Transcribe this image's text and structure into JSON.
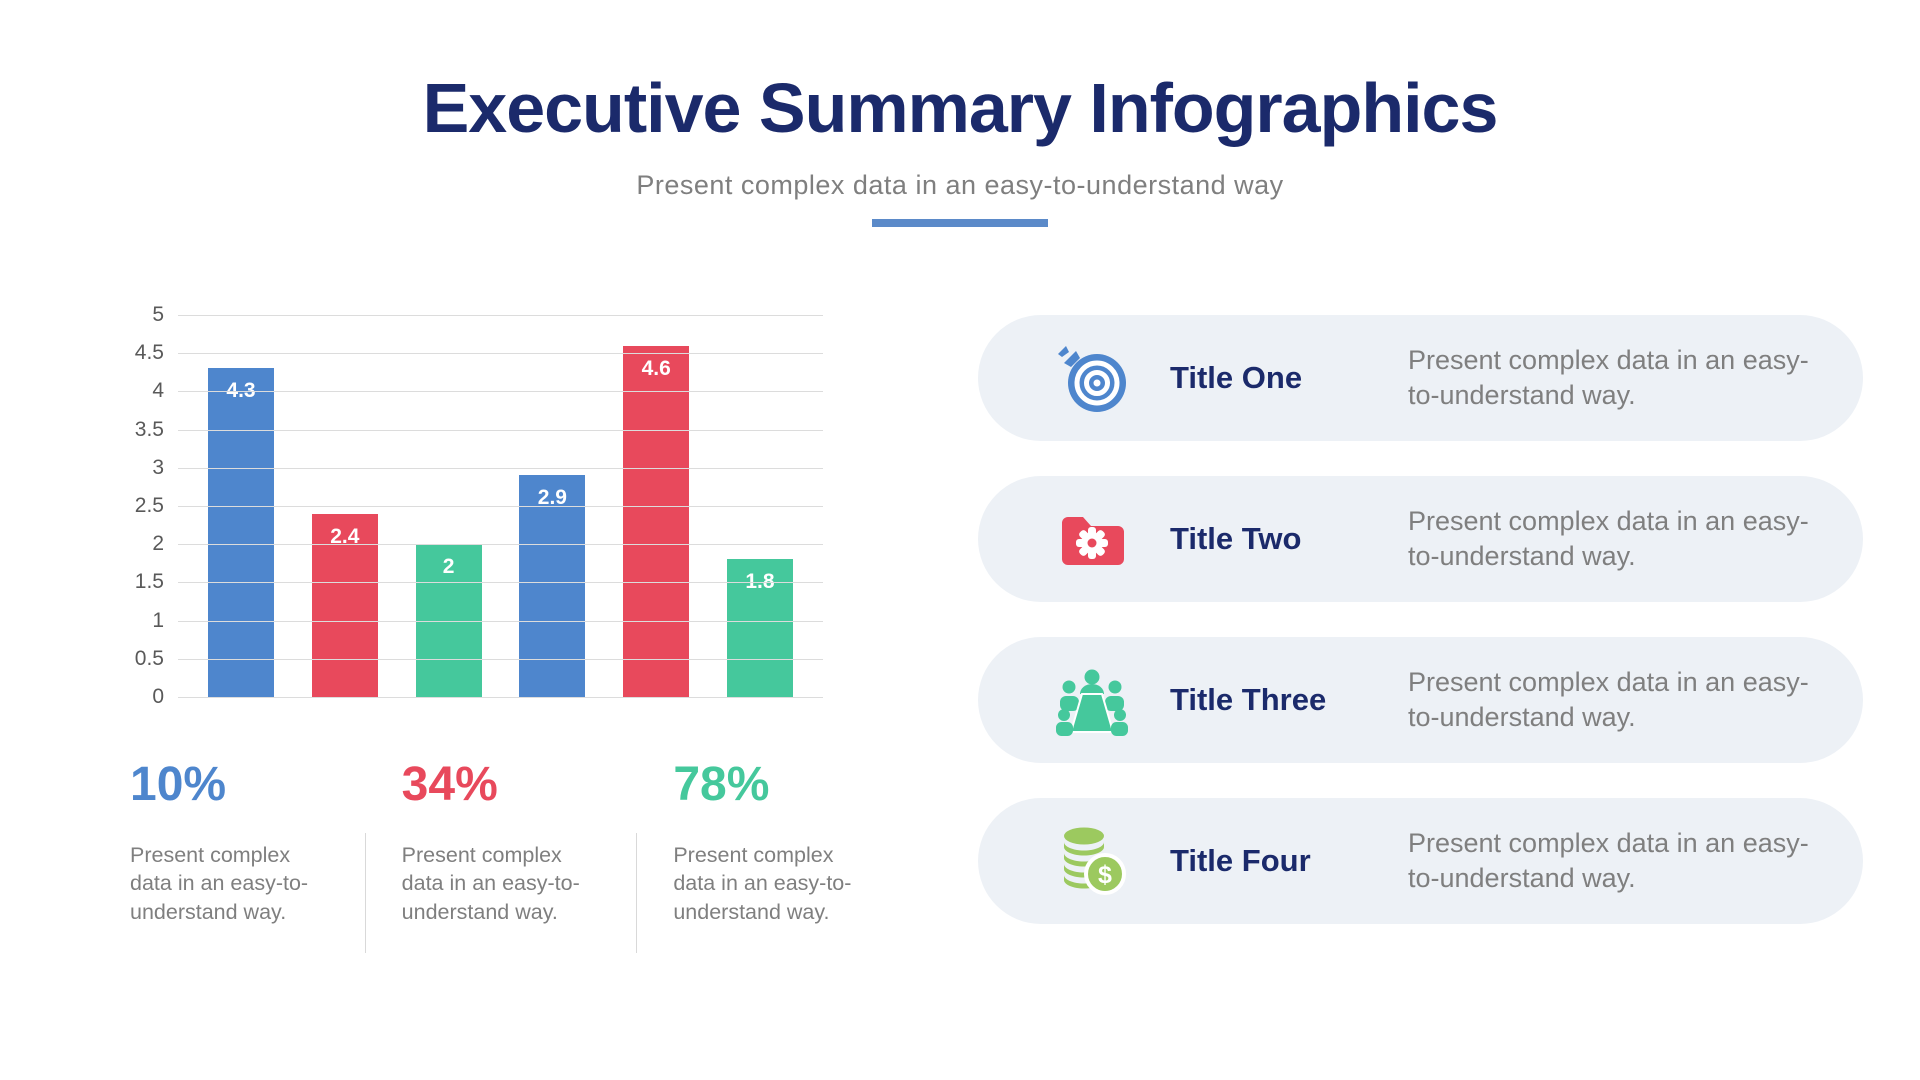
{
  "header": {
    "title": "Executive Summary Infographics",
    "subtitle": "Present complex data in an easy-to-understand way"
  },
  "chart_data": {
    "type": "bar",
    "categories": [
      "",
      "",
      "",
      "",
      "",
      ""
    ],
    "values": [
      4.3,
      2.4,
      2,
      2.9,
      4.6,
      1.8
    ],
    "labels": [
      "4.3",
      "2.4",
      "2",
      "2.9",
      "4.6",
      "1.8"
    ],
    "bar_colors": [
      "#4e86cd",
      "#e8495c",
      "#45c89c",
      "#4e86cd",
      "#e8495c",
      "#45c89c"
    ],
    "title": "",
    "xlabel": "",
    "ylabel": "",
    "ylim": [
      0,
      5
    ],
    "yticks": [
      "5",
      "4.5",
      "4",
      "3.5",
      "3",
      "2.5",
      "2",
      "1.5",
      "1",
      "0.5",
      "0"
    ],
    "grid": true,
    "legend": false
  },
  "stats": [
    {
      "value": "10%",
      "color": "#4e86cd",
      "description": "Present complex data in an easy-to-understand way."
    },
    {
      "value": "34%",
      "color": "#e8495c",
      "description": "Present complex data in an easy-to-understand way."
    },
    {
      "value": "78%",
      "color": "#45c89c",
      "description": "Present complex data in an easy-to-understand way."
    }
  ],
  "cards": [
    {
      "icon": "target-icon",
      "title": "Title One",
      "description": "Present complex data in an easy-to-understand way."
    },
    {
      "icon": "folder-gear-icon",
      "title": "Title Two",
      "description": "Present complex data in an easy-to-understand way."
    },
    {
      "icon": "meeting-people-icon",
      "title": "Title Three",
      "description": "Present complex data in an easy-to-understand way."
    },
    {
      "icon": "money-coins-icon",
      "title": "Title Four",
      "description": "Present complex data in an easy-to-understand way."
    }
  ],
  "palette": {
    "navy": "#1b2a6b",
    "gray_text": "#7f7f7f",
    "blue": "#4e86cd",
    "red": "#e8495c",
    "teal": "#45c89c",
    "lime": "#9cc95f",
    "card_bg": "#edf1f6",
    "underline": "#5b8ac9",
    "gridline": "#dcdcdc"
  }
}
